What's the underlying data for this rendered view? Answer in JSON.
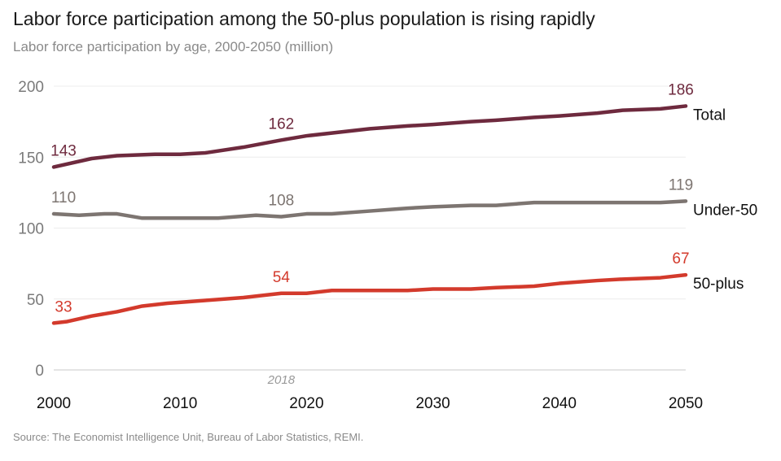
{
  "title": "Labor force participation among the 50-plus population is rising rapidly",
  "subtitle": "Labor force participation by age, 2000-2050 (million)",
  "source": "Source: The Economist Intelligence Unit, Bureau of Labor Statistics, REMI.",
  "chart_data": {
    "type": "line",
    "title": "Labor force participation among the 50-plus population is rising rapidly",
    "subtitle": "Labor force participation by age, 2000-2050 (million)",
    "xlim": [
      2000,
      2050
    ],
    "ylim": [
      0,
      200
    ],
    "x_ticks": [
      2000,
      2010,
      2020,
      2030,
      2040,
      2050
    ],
    "y_ticks": [
      0,
      50,
      100,
      150,
      200
    ],
    "grid": "horizontal",
    "annotation": "2018",
    "legend": "direct labels at right",
    "series": [
      {
        "name": "Total",
        "color": "#6e2a3e",
        "x": [
          2000,
          2003,
          2005,
          2008,
          2010,
          2012,
          2015,
          2018,
          2020,
          2023,
          2025,
          2028,
          2030,
          2033,
          2035,
          2038,
          2040,
          2043,
          2045,
          2048,
          2050
        ],
        "y": [
          143,
          149,
          151,
          152,
          152,
          153,
          157,
          162,
          165,
          168,
          170,
          172,
          173,
          175,
          176,
          178,
          179,
          181,
          183,
          184,
          186
        ],
        "labels": [
          {
            "x": 2000,
            "text": "143"
          },
          {
            "x": 2018,
            "text": "162"
          },
          {
            "x": 2050,
            "text": "186"
          }
        ]
      },
      {
        "name": "Under-50",
        "color": "#7d7571",
        "x": [
          2000,
          2002,
          2004,
          2005,
          2007,
          2010,
          2013,
          2016,
          2018,
          2020,
          2022,
          2025,
          2028,
          2030,
          2033,
          2035,
          2038,
          2040,
          2045,
          2048,
          2050
        ],
        "y": [
          110,
          109,
          110,
          110,
          107,
          107,
          107,
          109,
          108,
          110,
          110,
          112,
          114,
          115,
          116,
          116,
          118,
          118,
          118,
          118,
          119
        ],
        "labels": [
          {
            "x": 2000,
            "text": "110"
          },
          {
            "x": 2018,
            "text": "108"
          },
          {
            "x": 2050,
            "text": "119"
          }
        ]
      },
      {
        "name": "50-plus",
        "color": "#d33a2c",
        "x": [
          2000,
          2001,
          2003,
          2005,
          2007,
          2009,
          2012,
          2015,
          2018,
          2020,
          2022,
          2025,
          2028,
          2030,
          2033,
          2035,
          2038,
          2040,
          2043,
          2045,
          2048,
          2050
        ],
        "y": [
          33,
          34,
          38,
          41,
          45,
          47,
          49,
          51,
          54,
          54,
          56,
          56,
          56,
          57,
          57,
          58,
          59,
          61,
          63,
          64,
          65,
          67
        ],
        "labels": [
          {
            "x": 2000,
            "text": "33"
          },
          {
            "x": 2018,
            "text": "54"
          },
          {
            "x": 2050,
            "text": "67"
          }
        ]
      }
    ]
  }
}
